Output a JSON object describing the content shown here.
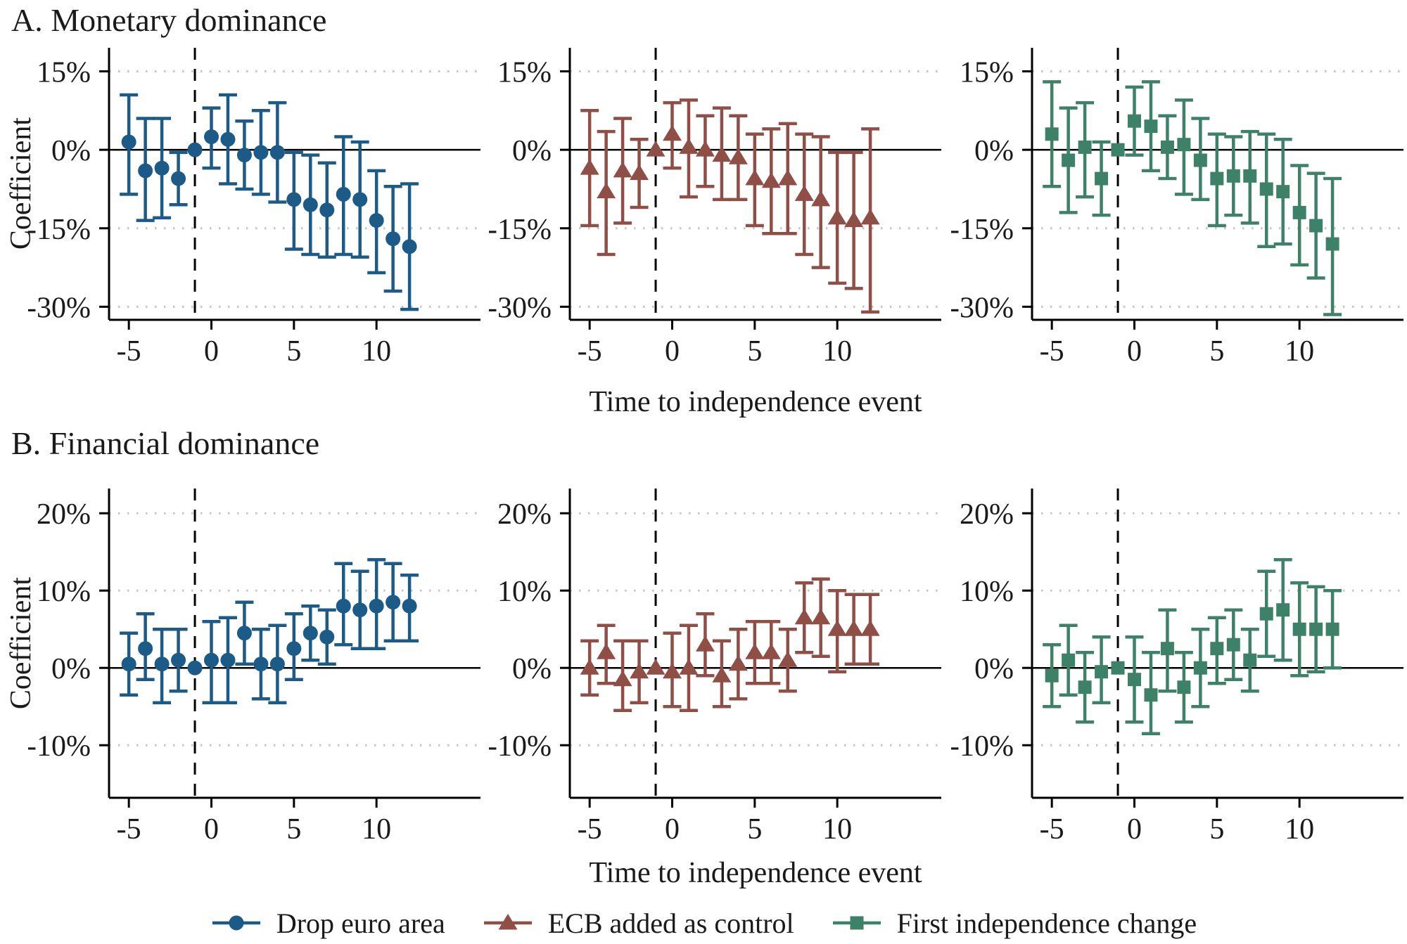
{
  "figure": {
    "background": "#ffffff",
    "text_color": "#1a1a1a"
  },
  "axis": {
    "xlabel": "Time to independence event",
    "ylabel": "Coefficient",
    "grid_color": "#c5c5c5",
    "line_color": "#000000"
  },
  "legend": [
    {
      "label": "Drop euro area",
      "marker": "circle",
      "color": "#1c5a88"
    },
    {
      "label": "ECB added as control",
      "marker": "triangle",
      "color": "#8f4e46"
    },
    {
      "label": "First independence change",
      "marker": "square",
      "color": "#3e8169"
    }
  ],
  "chart_data": [
    {
      "type": "scatter",
      "error_bars": true,
      "row_title": "A. Monetary dominance",
      "ylabel": "Coefficient",
      "xlabel": "Time to independence event",
      "unit": "%",
      "ylim": [
        -32.5,
        19.5
      ],
      "yticks": [
        15,
        0,
        -15,
        -30
      ],
      "xlim": [
        -6.2,
        16.3
      ],
      "xticks": [
        -5,
        0,
        5,
        10
      ],
      "vline_x": -1,
      "reference_x": -1,
      "x": [
        -5,
        -4,
        -3,
        -2,
        -1,
        0,
        1,
        2,
        3,
        4,
        5,
        6,
        7,
        8,
        9,
        10,
        11,
        12
      ],
      "series": [
        {
          "name": "Drop euro area",
          "marker": "circle",
          "color": "#1c5a88",
          "estimate": [
            1.5,
            -4,
            -3.5,
            -5.5,
            0,
            2.5,
            2,
            -1,
            -0.5,
            -0.5,
            -9.5,
            -10.5,
            -11.5,
            -8.5,
            -9.5,
            -13.5,
            -17,
            -18.5
          ],
          "ci_low": [
            -8.5,
            -13.5,
            -13,
            -10.5,
            0,
            -3.5,
            -6.5,
            -7.5,
            -8.5,
            -10,
            -19,
            -20,
            -20.5,
            -20,
            -20.5,
            -23.5,
            -27,
            -30.5
          ],
          "ci_high": [
            10.5,
            6,
            6,
            -0.5,
            0,
            8,
            10.5,
            5.5,
            7.5,
            9,
            -0.5,
            -1,
            -2.5,
            2.5,
            1.5,
            -4,
            -7,
            -6.5
          ]
        },
        {
          "name": "ECB added as control",
          "marker": "triangle",
          "color": "#8f4e46",
          "estimate": [
            -3.5,
            -8,
            -4,
            -4.5,
            0,
            3,
            0.5,
            0,
            -1,
            -1.5,
            -5.5,
            -6,
            -5.5,
            -8.5,
            -9.5,
            -13,
            -13.5,
            -13
          ],
          "ci_low": [
            -14.5,
            -20,
            -14,
            -11,
            0,
            -3.5,
            -9,
            -7,
            -9.5,
            -9.5,
            -14.5,
            -16,
            -16,
            -20,
            -22.5,
            -25.5,
            -26.5,
            -31
          ],
          "ci_high": [
            7.5,
            3.5,
            6,
            2,
            0,
            9,
            9.5,
            6.5,
            8,
            6.5,
            3,
            4,
            5,
            3,
            2.5,
            -0.5,
            -0.5,
            4
          ]
        },
        {
          "name": "First independence change",
          "marker": "square",
          "color": "#3e8169",
          "estimate": [
            3,
            -2,
            0.5,
            -5.5,
            0,
            5.5,
            4.5,
            0.5,
            1,
            -2,
            -5.5,
            -5,
            -5,
            -7.5,
            -8,
            -12,
            -14.5,
            -18
          ],
          "ci_low": [
            -7,
            -12,
            -9,
            -12.5,
            0,
            -1,
            -4,
            -5.5,
            -8.5,
            -9.5,
            -14.5,
            -12.5,
            -14,
            -18.5,
            -18,
            -22,
            -24.5,
            -31.5
          ],
          "ci_high": [
            13,
            8,
            9,
            1.5,
            0,
            12,
            13,
            6.5,
            9.5,
            6,
            3,
            2.5,
            3.5,
            3,
            2,
            -3,
            -4.5,
            -5.5
          ]
        }
      ]
    },
    {
      "type": "scatter",
      "error_bars": true,
      "row_title": "B. Financial dominance",
      "ylabel": "Coefficient",
      "xlabel": "Time to independence event",
      "unit": "%",
      "ylim": [
        -16.8,
        23.2
      ],
      "yticks": [
        20,
        10,
        0,
        -10
      ],
      "xlim": [
        -6.2,
        16.3
      ],
      "xticks": [
        -5,
        0,
        5,
        10
      ],
      "vline_x": -1,
      "reference_x": -1,
      "x": [
        -5,
        -4,
        -3,
        -2,
        -1,
        0,
        1,
        2,
        3,
        4,
        5,
        6,
        7,
        8,
        9,
        10,
        11,
        12
      ],
      "series": [
        {
          "name": "Drop euro area",
          "marker": "circle",
          "color": "#1c5a88",
          "estimate": [
            0.5,
            2.5,
            0.5,
            1,
            0,
            1,
            1,
            4.5,
            0.5,
            0.5,
            2.5,
            4.5,
            4,
            8,
            7.5,
            8,
            8.5,
            8
          ],
          "ci_low": [
            -3.5,
            -1.5,
            -4.5,
            -3,
            0,
            -4.5,
            -4.5,
            0.5,
            -4,
            -4.5,
            -1.5,
            1,
            0.5,
            3,
            2.5,
            2.5,
            3.5,
            3.5
          ],
          "ci_high": [
            4.5,
            7,
            5,
            5,
            0,
            6,
            6.5,
            8.5,
            5,
            5.5,
            7,
            8,
            7.5,
            13.5,
            12.5,
            14,
            13.5,
            12
          ]
        },
        {
          "name": "ECB added as control",
          "marker": "triangle",
          "color": "#8f4e46",
          "estimate": [
            0,
            2,
            -1.5,
            -0.5,
            0,
            -0.5,
            0,
            3,
            -1,
            0.5,
            2,
            2,
            1,
            6.5,
            6.5,
            5,
            5,
            5
          ],
          "ci_low": [
            -3.5,
            -2,
            -5.5,
            -4.5,
            0,
            -5,
            -5.5,
            -1,
            -5,
            -4,
            -2,
            -2,
            -3,
            2,
            1.5,
            -0.5,
            0.5,
            0.5
          ],
          "ci_high": [
            3.5,
            5.5,
            3.5,
            3.5,
            0,
            4.5,
            5.5,
            7,
            3.5,
            5,
            6,
            6,
            5,
            11,
            11.5,
            10,
            9.5,
            9.5
          ]
        },
        {
          "name": "First independence change",
          "marker": "square",
          "color": "#3e8169",
          "estimate": [
            -1,
            1,
            -2.5,
            -0.5,
            0,
            -1.5,
            -3.5,
            2.5,
            -2.5,
            0,
            2.5,
            3,
            1,
            7,
            7.5,
            5,
            5,
            5
          ],
          "ci_low": [
            -5,
            -3.5,
            -7,
            -4.5,
            0,
            -7,
            -8.5,
            -3,
            -7,
            -5,
            -2,
            -1.5,
            -3,
            1.5,
            1,
            -1,
            -0.5,
            0
          ],
          "ci_high": [
            3,
            5.5,
            2,
            4,
            0,
            4,
            2,
            7.5,
            2,
            5,
            6.5,
            7.5,
            5,
            12.5,
            14,
            11,
            10.5,
            10
          ]
        }
      ]
    }
  ]
}
